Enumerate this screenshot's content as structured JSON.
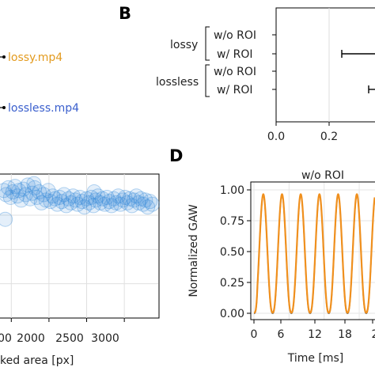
{
  "panels": {
    "a": {
      "files": [
        {
          "label": "lossy.mp4",
          "color": "#e39b1f"
        },
        {
          "label": "lossless.mp4",
          "color": "#3a5fcd"
        }
      ]
    },
    "b": {
      "letter": "B",
      "groups": [
        "lossy",
        "lossless"
      ],
      "rows": [
        "w/o ROI",
        "w/ ROI",
        "w/o ROI",
        "w/ ROI"
      ],
      "xticks": [
        "0.0",
        "0.2"
      ]
    },
    "c": {
      "xticks": [
        "00",
        "2000",
        "2500",
        "3000"
      ],
      "xlabel": "ked area [px]"
    },
    "d": {
      "letter": "D",
      "title": "w/o ROI",
      "title_color": "#c040c0",
      "ylabel": "Normalized GAW",
      "xlabel": "Time [ms]",
      "yticks": [
        "0.00",
        "0.25",
        "0.50",
        "0.75",
        "1.00"
      ],
      "xticks": [
        "0",
        "6",
        "12",
        "18",
        "2"
      ]
    }
  },
  "chart_data": [
    {
      "type": "bar",
      "panel": "B",
      "categories": [
        "lossy w/o ROI",
        "lossy w/ ROI",
        "lossless w/o ROI",
        "lossless w/ ROI"
      ],
      "xlim_visible": [
        0.0,
        0.31
      ],
      "errorbars": [
        {
          "category": "lossy w/ ROI",
          "low": 0.28,
          "high": 0.31
        },
        {
          "category": "lossless w/ ROI",
          "low": 0.3,
          "high": 0.31
        }
      ],
      "grid": true
    },
    {
      "type": "scatter",
      "panel": "C",
      "xlim": [
        1350,
        3450
      ],
      "color": "#2f86d6",
      "points": [
        [
          1400,
          0.93
        ],
        [
          1430,
          0.9
        ],
        [
          1460,
          0.95
        ],
        [
          1490,
          0.88
        ],
        [
          1520,
          0.92
        ],
        [
          1550,
          0.96
        ],
        [
          1580,
          0.89
        ],
        [
          1600,
          0.93
        ],
        [
          1630,
          0.86
        ],
        [
          1660,
          0.94
        ],
        [
          1690,
          0.9
        ],
        [
          1720,
          0.97
        ],
        [
          1750,
          0.87
        ],
        [
          1780,
          0.91
        ],
        [
          1810,
          0.95
        ],
        [
          1840,
          0.88
        ],
        [
          1870,
          0.92
        ],
        [
          1900,
          0.84
        ],
        [
          1930,
          0.9
        ],
        [
          1960,
          0.86
        ],
        [
          1990,
          0.93
        ],
        [
          2020,
          0.85
        ],
        [
          2050,
          0.89
        ],
        [
          2080,
          0.87
        ],
        [
          2110,
          0.83
        ],
        [
          2140,
          0.88
        ],
        [
          2170,
          0.85
        ],
        [
          2200,
          0.9
        ],
        [
          2230,
          0.82
        ],
        [
          2260,
          0.87
        ],
        [
          2290,
          0.84
        ],
        [
          2320,
          0.89
        ],
        [
          2350,
          0.86
        ],
        [
          2380,
          0.83
        ],
        [
          2410,
          0.88
        ],
        [
          2440,
          0.85
        ],
        [
          2470,
          0.81
        ],
        [
          2500,
          0.87
        ],
        [
          2530,
          0.84
        ],
        [
          2560,
          0.88
        ],
        [
          2590,
          0.82
        ],
        [
          2620,
          0.86
        ],
        [
          2650,
          0.89
        ],
        [
          2680,
          0.84
        ],
        [
          2710,
          0.87
        ],
        [
          2740,
          0.83
        ],
        [
          2770,
          0.88
        ],
        [
          2800,
          0.85
        ],
        [
          2830,
          0.82
        ],
        [
          2860,
          0.87
        ],
        [
          2890,
          0.84
        ],
        [
          2920,
          0.89
        ],
        [
          2950,
          0.83
        ],
        [
          2980,
          0.86
        ],
        [
          3010,
          0.88
        ],
        [
          3040,
          0.84
        ],
        [
          3070,
          0.87
        ],
        [
          3100,
          0.82
        ],
        [
          3130,
          0.86
        ],
        [
          3160,
          0.89
        ],
        [
          3190,
          0.84
        ],
        [
          3220,
          0.87
        ],
        [
          3250,
          0.83
        ],
        [
          3280,
          0.86
        ],
        [
          3310,
          0.81
        ],
        [
          3340,
          0.85
        ],
        [
          3370,
          0.83
        ],
        [
          1420,
          0.72
        ],
        [
          1800,
          0.98
        ],
        [
          2600,
          0.92
        ]
      ],
      "grid": true
    },
    {
      "type": "line",
      "panel": "D",
      "xlim": [
        0,
        23
      ],
      "ylim": [
        -0.02,
        1.05
      ],
      "period_ms": 3.2,
      "first_peak_ms": 1.6,
      "series": [
        {
          "color": "#333333",
          "x_start": 0,
          "x_end": 23,
          "min": 0.0,
          "max": 0.96
        },
        {
          "color": "#f0901e",
          "x_start": 0,
          "x_end": 23,
          "min": 0.0,
          "max": 0.96
        }
      ],
      "grid": true
    }
  ]
}
